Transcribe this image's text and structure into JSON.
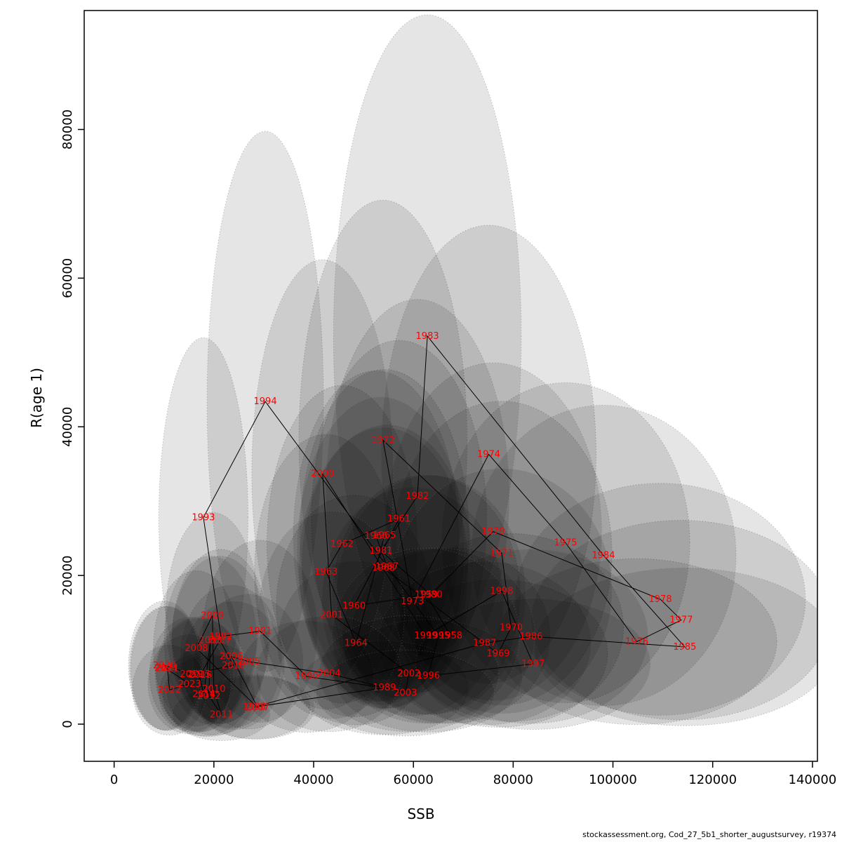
{
  "footer": {
    "text": "stockassessment.org, Cod_27_5b1_shorter_augustsurvey, r19374"
  },
  "chart_data": {
    "type": "scatter",
    "title": "",
    "xlabel": "SSB",
    "ylabel": "R(age 1)",
    "xlim": [
      -6000,
      141000
    ],
    "ylim": [
      -5000,
      96000
    ],
    "xticks": [
      0,
      20000,
      40000,
      60000,
      80000,
      100000,
      120000,
      140000
    ],
    "yticks": [
      0,
      20000,
      40000,
      60000,
      80000
    ],
    "grid": "off",
    "legend": "none",
    "label_color": "#ff0000",
    "line_color": "#000000",
    "ellipse_fill": "rgba(0,0,0,0.10)",
    "ellipse_stroke": "rgba(110,110,110,0.55)",
    "ellipse_rx_base": 5000,
    "ellipse_rx_frac": 0.22,
    "ellipse_ry_base": 2500,
    "ellipse_ry_frac": 0.78,
    "points": [
      {
        "year": 1958,
        "ssb": 67500,
        "r": 11900
      },
      {
        "year": 1959,
        "ssb": 62600,
        "r": 17400
      },
      {
        "year": 1960,
        "ssb": 48100,
        "r": 15900
      },
      {
        "year": 1961,
        "ssb": 57100,
        "r": 27600
      },
      {
        "year": 1962,
        "ssb": 45700,
        "r": 24200
      },
      {
        "year": 1963,
        "ssb": 42500,
        "r": 20500
      },
      {
        "year": 1964,
        "ssb": 48500,
        "r": 10900
      },
      {
        "year": 1965,
        "ssb": 54200,
        "r": 25400
      },
      {
        "year": 1966,
        "ssb": 52500,
        "r": 25300
      },
      {
        "year": 1967,
        "ssb": 54700,
        "r": 21200
      },
      {
        "year": 1968,
        "ssb": 54000,
        "r": 21000
      },
      {
        "year": 1969,
        "ssb": 77000,
        "r": 9500
      },
      {
        "year": 1970,
        "ssb": 79600,
        "r": 13000
      },
      {
        "year": 1971,
        "ssb": 77700,
        "r": 23000
      },
      {
        "year": 1972,
        "ssb": 53900,
        "r": 38200
      },
      {
        "year": 1973,
        "ssb": 59800,
        "r": 16500
      },
      {
        "year": 1974,
        "ssb": 75100,
        "r": 36300
      },
      {
        "year": 1975,
        "ssb": 90500,
        "r": 24400
      },
      {
        "year": 1976,
        "ssb": 104800,
        "r": 11100
      },
      {
        "year": 1977,
        "ssb": 113700,
        "r": 14000
      },
      {
        "year": 1978,
        "ssb": 109500,
        "r": 16800
      },
      {
        "year": 1979,
        "ssb": 76000,
        "r": 25900
      },
      {
        "year": 1980,
        "ssb": 63500,
        "r": 17400
      },
      {
        "year": 1981,
        "ssb": 53500,
        "r": 23300
      },
      {
        "year": 1982,
        "ssb": 60800,
        "r": 30700
      },
      {
        "year": 1983,
        "ssb": 62800,
        "r": 52200
      },
      {
        "year": 1984,
        "ssb": 98100,
        "r": 22700
      },
      {
        "year": 1985,
        "ssb": 114400,
        "r": 10400
      },
      {
        "year": 1986,
        "ssb": 83600,
        "r": 11800
      },
      {
        "year": 1987,
        "ssb": 74300,
        "r": 10900
      },
      {
        "year": 1988,
        "ssb": 28100,
        "r": 2300
      },
      {
        "year": 1989,
        "ssb": 54200,
        "r": 4900
      },
      {
        "year": 1990,
        "ssb": 38600,
        "r": 6400
      },
      {
        "year": 1991,
        "ssb": 29300,
        "r": 12500
      },
      {
        "year": 1992,
        "ssb": 21400,
        "r": 11800
      },
      {
        "year": 1993,
        "ssb": 17900,
        "r": 27800
      },
      {
        "year": 1994,
        "ssb": 30300,
        "r": 43400
      },
      {
        "year": 1995,
        "ssb": 65000,
        "r": 11900
      },
      {
        "year": 1996,
        "ssb": 63000,
        "r": 6500
      },
      {
        "year": 1997,
        "ssb": 84000,
        "r": 8100
      },
      {
        "year": 1998,
        "ssb": 77700,
        "r": 17900
      },
      {
        "year": 1999,
        "ssb": 62500,
        "r": 11900
      },
      {
        "year": 2000,
        "ssb": 41800,
        "r": 33700
      },
      {
        "year": 2001,
        "ssb": 43600,
        "r": 14700
      },
      {
        "year": 2002,
        "ssb": 59100,
        "r": 6800
      },
      {
        "year": 2003,
        "ssb": 58400,
        "r": 4200
      },
      {
        "year": 2004,
        "ssb": 43100,
        "r": 6800
      },
      {
        "year": 2005,
        "ssb": 27000,
        "r": 8400
      },
      {
        "year": 2006,
        "ssb": 23500,
        "r": 9100
      },
      {
        "year": 2007,
        "ssb": 28800,
        "r": 2200
      },
      {
        "year": 2008,
        "ssb": 16500,
        "r": 10200
      },
      {
        "year": 2009,
        "ssb": 19700,
        "r": 14600
      },
      {
        "year": 2010,
        "ssb": 20000,
        "r": 4700
      },
      {
        "year": 2011,
        "ssb": 21500,
        "r": 1300
      },
      {
        "year": 2012,
        "ssb": 19000,
        "r": 3800
      },
      {
        "year": 2013,
        "ssb": 19300,
        "r": 11300
      },
      {
        "year": 2014,
        "ssb": 18000,
        "r": 4000
      },
      {
        "year": 2015,
        "ssb": 17000,
        "r": 6700
      },
      {
        "year": 2016,
        "ssb": 17300,
        "r": 6600
      },
      {
        "year": 2017,
        "ssb": 21200,
        "r": 11300
      },
      {
        "year": 2018,
        "ssb": 23900,
        "r": 7900
      },
      {
        "year": 2019,
        "ssb": 15500,
        "r": 6700
      },
      {
        "year": 2020,
        "ssb": 10100,
        "r": 7900
      },
      {
        "year": 2021,
        "ssb": 10700,
        "r": 7500
      },
      {
        "year": 2022,
        "ssb": 11100,
        "r": 4600
      },
      {
        "year": 2023,
        "ssb": 15100,
        "r": 5400
      },
      {
        "year": 2024,
        "ssb": 10400,
        "r": 7500
      }
    ]
  }
}
